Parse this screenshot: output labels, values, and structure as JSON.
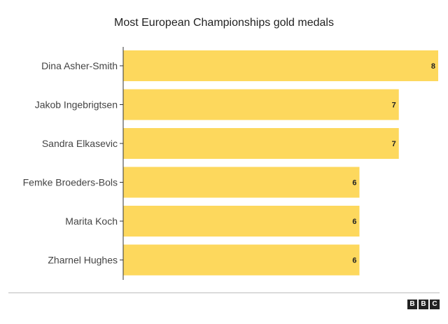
{
  "chart_data": {
    "type": "bar",
    "orientation": "horizontal",
    "title": "Most European Championships gold medals",
    "xlabel": "",
    "ylabel": "",
    "categories": [
      "Dina Asher-Smith",
      "Jakob Ingebrigtsen",
      "Sandra Elkasevic",
      "Femke Broeders-Bols",
      "Marita Koch",
      "Zharnel Hughes"
    ],
    "values": [
      8,
      7,
      7,
      6,
      6,
      6
    ],
    "xlim": [
      0,
      8
    ],
    "grid": false,
    "bar_color": "#fdd85d"
  },
  "colors": {
    "bar": "#fdd85d",
    "axis": "#333333",
    "text": "#222222"
  },
  "footer": {
    "logo": [
      "B",
      "B",
      "C"
    ]
  }
}
